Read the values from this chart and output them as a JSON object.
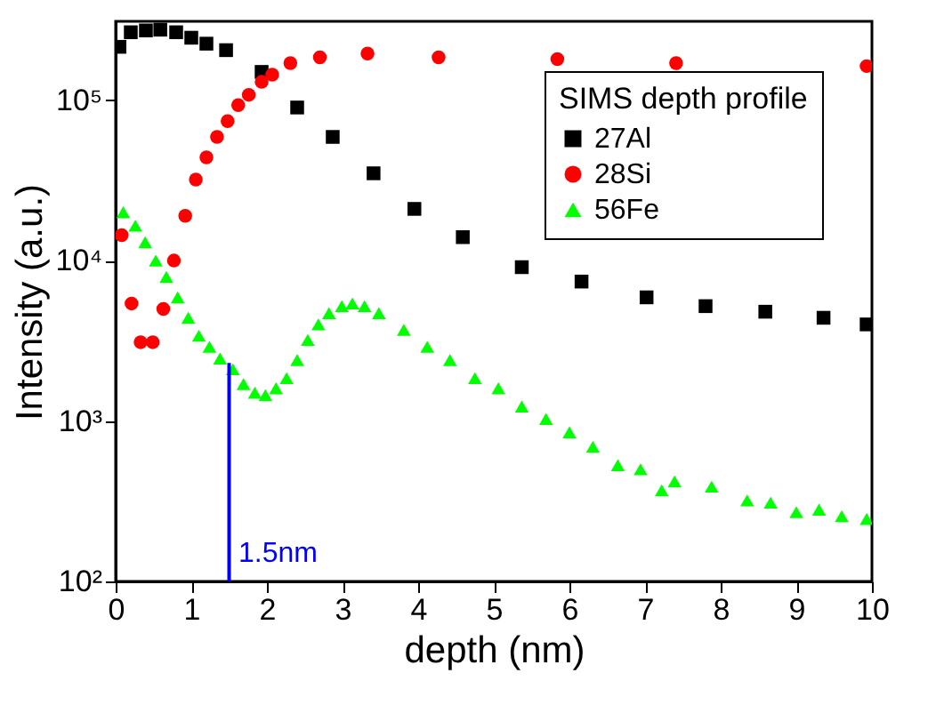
{
  "chart_data": {
    "type": "scatter",
    "xlabel": "depth (nm)",
    "ylabel": "Intensity (a.u.)",
    "legend_title": "SIMS depth profile",
    "xlim": [
      0,
      10
    ],
    "xticks": [
      0,
      1,
      2,
      3,
      4,
      5,
      6,
      7,
      8,
      9,
      10
    ],
    "ylim": [
      100,
      310000
    ],
    "yticks": [
      {
        "value": 100,
        "label": "10²"
      },
      {
        "value": 1000,
        "label": "10³"
      },
      {
        "value": 10000,
        "label": "10⁴"
      },
      {
        "value": 100000,
        "label": "10⁵"
      }
    ],
    "log": true,
    "grid": false,
    "legend": "top right",
    "series": [
      {
        "name": "27Al",
        "color": "#000000",
        "marker": "square",
        "x": [
          0.05,
          0.2,
          0.4,
          0.59,
          0.8,
          1.0,
          1.2,
          1.46,
          1.93,
          2.4,
          2.87,
          3.41,
          3.95,
          4.59,
          5.37,
          6.16,
          7.02,
          7.8,
          8.59,
          9.36,
          9.93
        ],
        "values": [
          215000,
          265000,
          272000,
          275000,
          265000,
          245000,
          225000,
          205000,
          150000,
          90000,
          59000,
          35000,
          21000,
          14000,
          9100,
          7400,
          5900,
          5200,
          4800,
          4400,
          4000
        ]
      },
      {
        "name": "28Si",
        "color": "#ff0000",
        "marker": "circle",
        "x": [
          0.08,
          0.21,
          0.33,
          0.49,
          0.63,
          0.77,
          0.92,
          1.06,
          1.2,
          1.34,
          1.48,
          1.62,
          1.76,
          1.93,
          2.07,
          2.31,
          2.7,
          3.33,
          4.27,
          5.84,
          7.41,
          9.93
        ],
        "values": [
          14400,
          5400,
          3100,
          3100,
          5000,
          10000,
          19000,
          32000,
          44000,
          59000,
          74000,
          93000,
          108000,
          130000,
          144000,
          170000,
          185000,
          195000,
          185000,
          180000,
          170000,
          163000
        ]
      },
      {
        "name": "56Fe",
        "color": "#00ff00",
        "marker": "triangle",
        "x": [
          0.1,
          0.26,
          0.39,
          0.53,
          0.67,
          0.82,
          0.96,
          1.1,
          1.24,
          1.38,
          1.55,
          1.69,
          1.84,
          1.98,
          2.12,
          2.26,
          2.4,
          2.54,
          2.68,
          2.82,
          2.99,
          3.13,
          3.29,
          3.48,
          3.81,
          4.12,
          4.42,
          4.75,
          5.06,
          5.37,
          5.69,
          6.0,
          6.31,
          6.64,
          6.94,
          7.22,
          7.39,
          7.88,
          8.35,
          8.66,
          9.0,
          9.3,
          9.6,
          9.93
        ],
        "values": [
          20000,
          16500,
          13000,
          10000,
          7900,
          5900,
          4400,
          3400,
          2900,
          2450,
          2100,
          1700,
          1500,
          1450,
          1600,
          1850,
          2400,
          3200,
          4000,
          4700,
          5200,
          5400,
          5200,
          4700,
          3700,
          2900,
          2400,
          1850,
          1600,
          1230,
          1030,
          850,
          690,
          530,
          500,
          370,
          420,
          390,
          320,
          310,
          270,
          280,
          255,
          245
        ]
      },
      {
        "type": "line",
        "color": "#0000ff",
        "x": [
          1.5,
          1.5
        ],
        "values": [
          100,
          2300
        ]
      }
    ],
    "annotations": [
      "1.5nm"
    ]
  }
}
